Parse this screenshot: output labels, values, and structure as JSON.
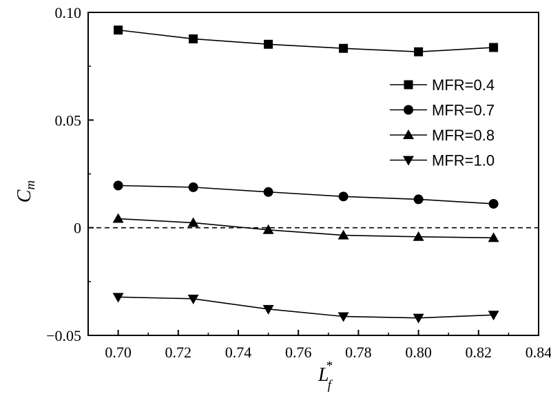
{
  "chart_data": {
    "type": "line",
    "xlabel": {
      "main": "L",
      "sub": "f",
      "sup": "*"
    },
    "ylabel": {
      "main": "C",
      "sub": "m"
    },
    "xlim": [
      0.69,
      0.84
    ],
    "ylim": [
      -0.05,
      0.1
    ],
    "xticks": [
      0.7,
      0.72,
      0.74,
      0.76,
      0.78,
      0.8,
      0.82,
      0.84
    ],
    "xtick_labels": [
      "0.70",
      "0.72",
      "0.74",
      "0.76",
      "0.78",
      "0.80",
      "0.82",
      "0.84"
    ],
    "yticks": [
      -0.05,
      0,
      0.05,
      0.1
    ],
    "ytick_labels": [
      "−0.05",
      "0",
      "0.05",
      "0.10"
    ],
    "reference_line": {
      "y": 0,
      "style": "dashed"
    },
    "legend_position": "upper-right",
    "grid": false,
    "x": [
      0.7,
      0.725,
      0.75,
      0.775,
      0.8,
      0.825
    ],
    "series": [
      {
        "name": "MFR=0.4",
        "marker": "square",
        "color": "#000000",
        "values": [
          0.0918,
          0.0877,
          0.0852,
          0.0833,
          0.0817,
          0.0837
        ]
      },
      {
        "name": "MFR=0.7",
        "marker": "circle",
        "color": "#000000",
        "values": [
          0.0196,
          0.0188,
          0.0166,
          0.0145,
          0.0132,
          0.0111
        ]
      },
      {
        "name": "MFR=0.8",
        "marker": "triangle-up",
        "color": "#000000",
        "values": [
          0.0042,
          0.0023,
          -0.001,
          -0.0035,
          -0.0042,
          -0.0047
        ]
      },
      {
        "name": "MFR=1.0",
        "marker": "triangle-down",
        "color": "#000000",
        "values": [
          -0.0322,
          -0.033,
          -0.0378,
          -0.0412,
          -0.0419,
          -0.0405
        ]
      }
    ]
  }
}
